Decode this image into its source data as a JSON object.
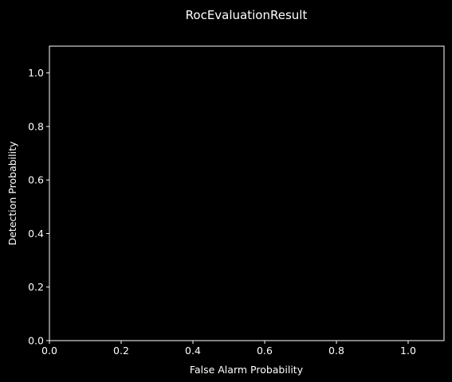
{
  "chart_data": {
    "type": "line",
    "title": "RocEvaluationResult",
    "xlabel": "False Alarm Probability",
    "ylabel": "Detection Probability",
    "xlim": [
      0.0,
      1.1
    ],
    "ylim": [
      0.0,
      1.1
    ],
    "xticks": [
      0.0,
      0.2,
      0.4,
      0.6,
      0.8,
      1.0
    ],
    "yticks": [
      0.0,
      0.2,
      0.4,
      0.6,
      0.8,
      1.0
    ],
    "xtick_labels": [
      "0.0",
      "0.2",
      "0.4",
      "0.6",
      "0.8",
      "1.0"
    ],
    "ytick_labels": [
      "0.0",
      "0.2",
      "0.4",
      "0.6",
      "0.8",
      "1.0"
    ],
    "grid": false,
    "series": [],
    "colors": {
      "background": "#000000",
      "foreground": "#ffffff"
    }
  }
}
